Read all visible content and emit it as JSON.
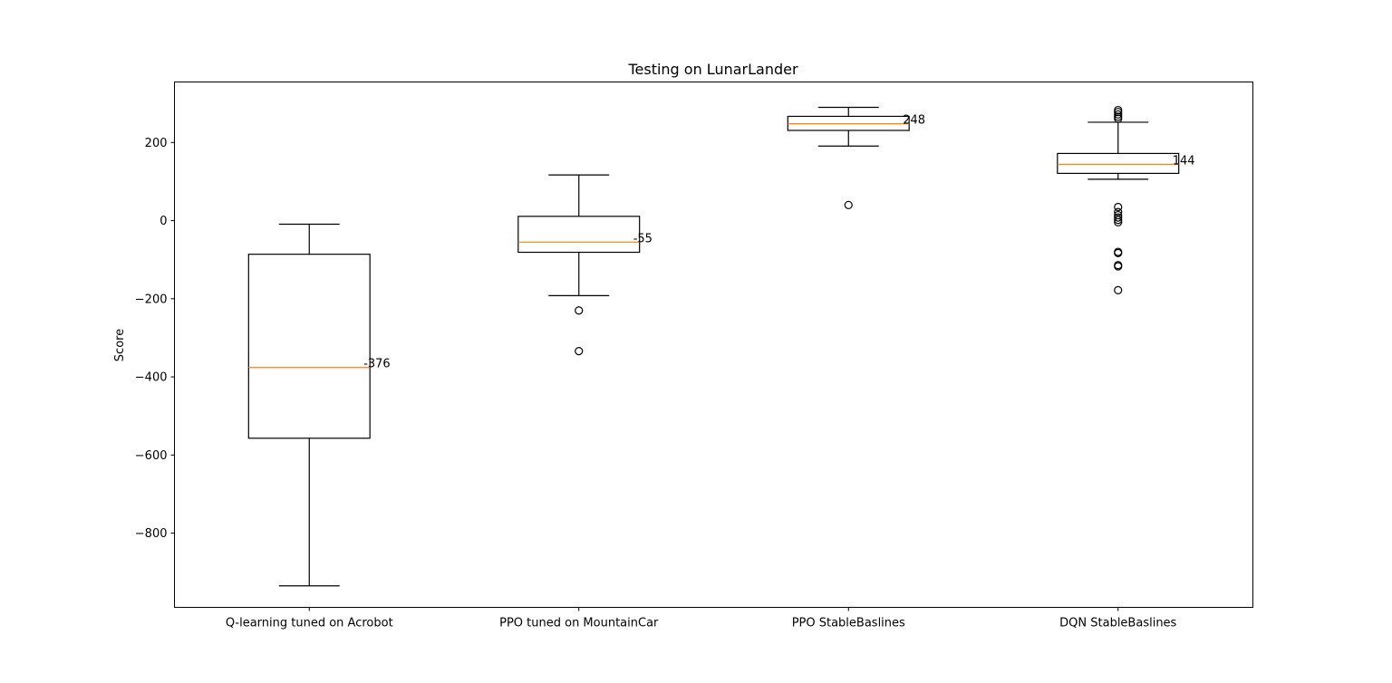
{
  "chart_data": {
    "type": "box",
    "title": "Testing on LunarLander",
    "xlabel": "",
    "ylabel": "Score",
    "ylim": [
      -990,
      355
    ],
    "yticks": [
      -800,
      -600,
      -400,
      -200,
      0,
      200
    ],
    "ytick_labels": [
      "−800",
      "−600",
      "−400",
      "−200",
      "0",
      "200"
    ],
    "grid": false,
    "legend": "none",
    "colors": {
      "box": "#000000",
      "median": "#ff7f0e",
      "background": "#ffffff"
    },
    "categories": [
      "Q-learning tuned on Acrobot",
      "PPO tuned on MountainCar",
      "PPO StableBaslines",
      "DQN StableBaslines"
    ],
    "boxes": [
      {
        "whisker_low": -935,
        "q1": -557,
        "median": -376,
        "q3": -86,
        "whisker_high": -9,
        "outliers": [],
        "median_label": "-376"
      },
      {
        "whisker_low": -192,
        "q1": -81,
        "median": -55,
        "q3": 11,
        "whisker_high": 117,
        "outliers": [
          -230,
          -334
        ],
        "median_label": "-55"
      },
      {
        "whisker_low": 191,
        "q1": 231,
        "median": 248,
        "q3": 267,
        "whisker_high": 290,
        "outliers": [
          40
        ],
        "median_label": "248"
      },
      {
        "whisker_low": 106,
        "q1": 121,
        "median": 144,
        "q3": 172,
        "whisker_high": 252,
        "outliers": [
          283,
          278,
          272,
          266,
          261,
          35,
          22,
          14,
          8,
          2,
          -4,
          -80,
          -83,
          -114,
          -117,
          -178
        ],
        "median_label": "144"
      }
    ]
  }
}
